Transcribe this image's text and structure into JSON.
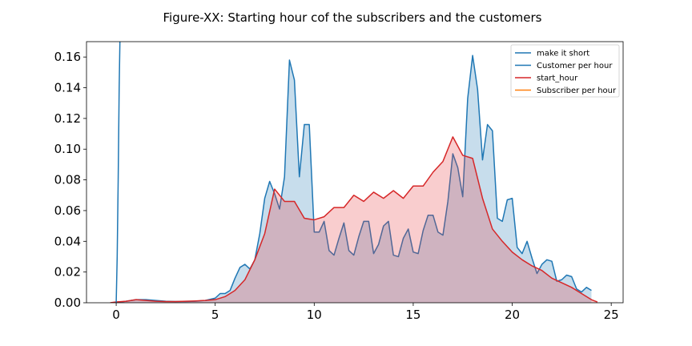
{
  "chart_data": {
    "type": "area",
    "title": "Figure-XX: Starting hour cof the subscribers and the customers",
    "xlabel": "",
    "ylabel": "",
    "xlim": [
      -1.5,
      25.6
    ],
    "ylim": [
      0,
      0.17
    ],
    "xticks": [
      0,
      5,
      10,
      15,
      20,
      25
    ],
    "yticks": [
      0.0,
      0.02,
      0.04,
      0.06,
      0.08,
      0.1,
      0.12,
      0.14,
      0.16
    ],
    "ytick_labels": [
      "0.00",
      "0.02",
      "0.04",
      "0.06",
      "0.08",
      "0.10",
      "0.12",
      "0.14",
      "0.16"
    ],
    "grid": false,
    "legend_position": "top-right",
    "legend": [
      "make it short",
      "Customer per hour",
      "start_hour",
      "Subscriber per hour"
    ],
    "series": [
      {
        "name": "make it short",
        "color": "#1f77b4",
        "fill": false,
        "x": [
          0.0,
          0.05,
          0.1,
          0.15,
          0.2
        ],
        "y": [
          0.0,
          0.03,
          0.08,
          0.14,
          0.18
        ]
      },
      {
        "name": "Customer per hour",
        "color": "#1f77b4",
        "fill": true,
        "fill_color": "#1f77b4",
        "x": [
          0,
          0.5,
          1,
          1.5,
          2,
          2.5,
          3,
          3.5,
          4,
          4.5,
          5,
          5.25,
          5.5,
          5.75,
          6,
          6.25,
          6.5,
          6.75,
          7,
          7.25,
          7.5,
          7.75,
          8,
          8.25,
          8.5,
          8.75,
          9,
          9.25,
          9.5,
          9.75,
          10,
          10.25,
          10.5,
          10.75,
          11,
          11.25,
          11.5,
          11.75,
          12,
          12.25,
          12.5,
          12.75,
          13,
          13.25,
          13.5,
          13.75,
          14,
          14.25,
          14.5,
          14.75,
          15,
          15.25,
          15.5,
          15.75,
          16,
          16.25,
          16.5,
          16.75,
          17,
          17.25,
          17.5,
          17.75,
          18,
          18.25,
          18.5,
          18.75,
          19,
          19.25,
          19.5,
          19.75,
          20,
          20.25,
          20.5,
          20.75,
          21,
          21.25,
          21.5,
          21.75,
          22,
          22.25,
          22.5,
          22.75,
          23,
          23.25,
          23.5,
          23.75,
          24
        ],
        "y": [
          0.0,
          0.001,
          0.002,
          0.002,
          0.0015,
          0.001,
          0.0008,
          0.0008,
          0.001,
          0.0015,
          0.003,
          0.006,
          0.006,
          0.008,
          0.016,
          0.023,
          0.025,
          0.022,
          0.028,
          0.045,
          0.068,
          0.079,
          0.071,
          0.061,
          0.082,
          0.158,
          0.145,
          0.082,
          0.116,
          0.116,
          0.046,
          0.046,
          0.053,
          0.034,
          0.031,
          0.042,
          0.052,
          0.034,
          0.031,
          0.043,
          0.053,
          0.053,
          0.032,
          0.038,
          0.05,
          0.053,
          0.031,
          0.03,
          0.042,
          0.048,
          0.033,
          0.032,
          0.047,
          0.057,
          0.057,
          0.046,
          0.044,
          0.066,
          0.097,
          0.088,
          0.069,
          0.133,
          0.161,
          0.139,
          0.093,
          0.116,
          0.112,
          0.055,
          0.053,
          0.067,
          0.068,
          0.036,
          0.032,
          0.04,
          0.029,
          0.019,
          0.025,
          0.028,
          0.027,
          0.014,
          0.015,
          0.018,
          0.017,
          0.009,
          0.007,
          0.01,
          0.008
        ]
      },
      {
        "name": "start_hour",
        "color": "#d62728",
        "fill": true,
        "fill_color": "#e8393c",
        "x": [
          -0.3,
          0,
          0.5,
          1,
          1.5,
          2,
          2.5,
          3,
          3.5,
          4,
          4.5,
          5,
          5.5,
          6,
          6.5,
          7,
          7.5,
          8,
          8.5,
          9,
          9.5,
          10,
          10.5,
          11,
          11.5,
          12,
          12.5,
          13,
          13.5,
          14,
          14.5,
          15,
          15.5,
          16,
          16.5,
          17,
          17.5,
          18,
          18.5,
          19,
          19.5,
          20,
          20.5,
          21,
          21.5,
          22,
          22.5,
          23,
          23.5,
          24,
          24.3
        ],
        "y": [
          0.0,
          0.0005,
          0.001,
          0.002,
          0.0015,
          0.001,
          0.0008,
          0.0008,
          0.001,
          0.0012,
          0.0015,
          0.002,
          0.004,
          0.008,
          0.015,
          0.028,
          0.045,
          0.074,
          0.066,
          0.066,
          0.055,
          0.054,
          0.056,
          0.062,
          0.062,
          0.07,
          0.066,
          0.072,
          0.068,
          0.073,
          0.068,
          0.076,
          0.076,
          0.085,
          0.092,
          0.108,
          0.096,
          0.094,
          0.068,
          0.048,
          0.04,
          0.033,
          0.028,
          0.024,
          0.021,
          0.016,
          0.013,
          0.01,
          0.006,
          0.002,
          0.0005
        ]
      },
      {
        "name": "Subscriber per hour",
        "color": "#ff7f0e",
        "fill": false,
        "x": [],
        "y": []
      }
    ]
  }
}
